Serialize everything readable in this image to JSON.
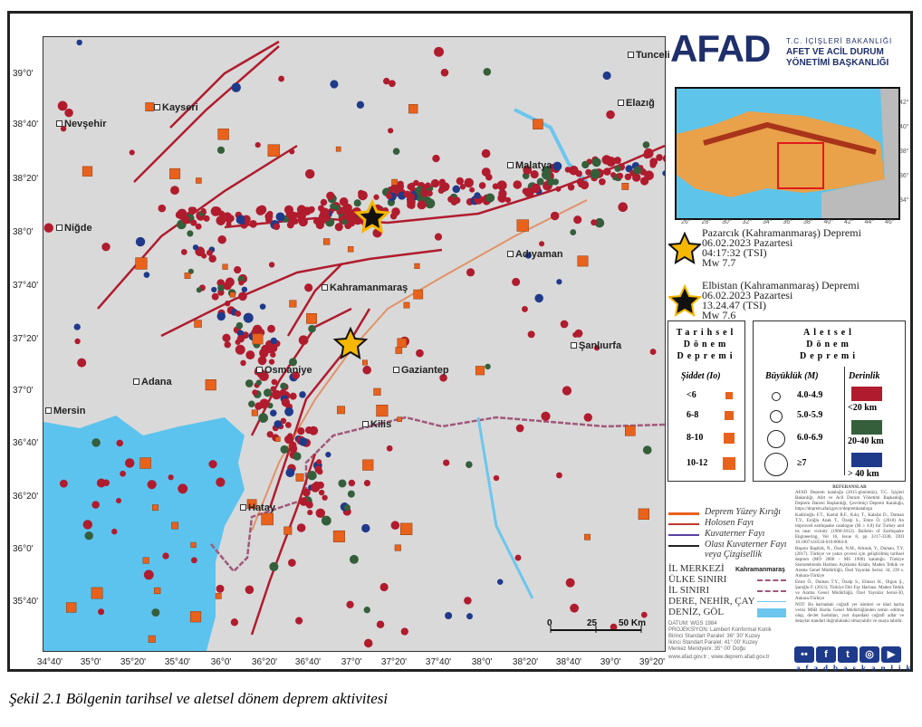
{
  "header": {
    "logo": "AFAD",
    "ministry_line1": "T.C. İÇİŞLERİ BAKANLIĞI",
    "ministry_line2": "AFET VE ACİL DURUM",
    "ministry_line3": "YÖNETİMİ BAŞKANLIĞI"
  },
  "inset": {
    "lon_ticks": [
      "26°",
      "28°",
      "30°",
      "32°",
      "34°",
      "36°",
      "38°",
      "40°",
      "42°",
      "44°",
      "46°"
    ],
    "lat_ticks": [
      "42°",
      "40°",
      "38°",
      "36°",
      "34°"
    ]
  },
  "map": {
    "lat_ticks": [
      "39°0'",
      "38°40'",
      "38°20'",
      "38°0'",
      "37°40'",
      "37°20'",
      "37°0'",
      "36°40'",
      "36°20'",
      "36°0'",
      "35°40'"
    ],
    "lon_ticks": [
      "34°40'",
      "35°0'",
      "35°20'",
      "35°40'",
      "36°0'",
      "36°20'",
      "36°40'",
      "37°0'",
      "37°20'",
      "37°40'",
      "38°0'",
      "38°20'",
      "38°40'",
      "39°0'",
      "39°20'"
    ],
    "cities": [
      "Tunceli",
      "Elazığ",
      "Kayseri",
      "Nevşehir",
      "Malatya",
      "Niğde",
      "Adıyaman",
      "Kahramanmaraş",
      "Şanlıurfa",
      "Osmaniye",
      "Gaziantep",
      "Adana",
      "Mersin",
      "Kilis",
      "Hatay"
    ],
    "scale": {
      "labels": [
        "0",
        "25",
        "50 Km"
      ]
    }
  },
  "mainshocks": [
    {
      "name": "Pazarcık (Kahramanmaraş) Depremi",
      "date": "06.02.2023 Pazartesi",
      "time": "04:17:32 (TSI)",
      "mag": "Mw 7.7"
    },
    {
      "name": "Elbistan (Kahramanmaraş) Depremi",
      "date": "06.02.2023 Pazartesi",
      "time": "13.24.47 (TSI)",
      "mag": "Mw 7.6"
    }
  ],
  "legend": {
    "historical": {
      "title": [
        "Tarihsel",
        "Dönem",
        "Depremi"
      ],
      "subtitle": "Şiddet (Io)",
      "classes": [
        "<6",
        "6-8",
        "8-10",
        "10-12"
      ]
    },
    "instrumental": {
      "title": [
        "Aletsel",
        "Dönem",
        "Depremi"
      ],
      "mag_title": "Büyüklük (M)",
      "mag_classes": [
        "4.0-4.9",
        "5.0-5.9",
        "6.0-6.9",
        "≥7"
      ],
      "depth_title": "Derinlik",
      "depth_classes": [
        "<20 km",
        "20-40 km",
        "> 40 km"
      ]
    },
    "depth_colors": [
      "#b01c2e",
      "#355e3b",
      "#1f3a8a"
    ],
    "historical_color": "#e8621c",
    "lines": [
      "Deprem Yüzey Kırığı",
      "Holosen Fayı",
      "Kuvaterner Fayı",
      "Olası Kuvaterner Fayı veya Çizgisellik"
    ],
    "symbols": [
      "İL MERKEZİ",
      "ÜLKE SINIRI",
      "İL SINIRI",
      "DERE, NEHİR, ÇAY",
      "DENİZ, GÖL"
    ],
    "city_example": "Kahramanmaraş",
    "projection": [
      "DATUM: WGS 1984",
      "PROJEKSİYON: Lambert Konformal Konik",
      "Birinci Standart Paralel: 36° 30' Kuzey",
      "İkinci Standart Paralel: 41° 00' Kuzey",
      "Merkez Meridyeni: 35° 00' Doğu"
    ],
    "web": "www.afad.gov.tr ; www.deprem.afad.gov.tr"
  },
  "references": {
    "title": "REFERANSLAR",
    "items": [
      "AFAD Deprem kataloğu (2015-günümüz), T.C. İçişleri Bakanlığı, Afet ve Acil Durum Yönetimi Başkanlığı, Deprem Dairesi Başkanlığı, Çevrimiçi Deprem Kataloğu, https://deprem.afad.gov.tr/depremkatalogu",
      "Kadirioğlu F.T., Kartal R.F., Kılıç T., Kalafat D., Duman T.Y., Eroğlu Azak T., Özalp S., Emre Ö. (2018) An improved earthquake catalogue (M ≥ 4.0) for Turkey and its near vicinity (1900-2012). Bulletin of Earthquake Engineering, Vol 16, Issue 8, pp 3317-3338, DOI 10.1007/s10518-016-0064-8.",
      "Başarır Baştürk, N., Özel, N.M., Altınok, Y., Duman, T.Y. (2017). Türkiye ve yakın çevresi için geliştirilmiş tarihsel deprem (MÖ 2000 - MS 1900) kataloğu. Türkiye Sismotektonik Haritası Açıklama Kitabı, Maden Tetkik ve Arama Genel Müdürlüğü, Özel Yayınlar Serisi: 34, 239 s. Ankara-Türkiye",
      "Emre Ö., Duman T.Y., Özalp S., Elmacı H., Olgun Ş., Şaroğlu F. (2013). Türkiye Diri Fay Haritası. Maden Tetkik ve Arama Genel Müdürlüğü, Özel Yayınlar Serisi-30, Ankara-Türkiye",
      "NOT: Bu haritadaki coğrafi yer isimleri ve idari harita verisi MSB Harita Genel Müdürlüğünden temin edilmiş olup, devlet hudutları, yurt dışındaki coğrafi adlar ve detaylar standart doğruluktaki olmayabilir ve onaya tabidir."
    ]
  },
  "social": {
    "handle": "afadbaskanlik",
    "icons": [
      "flickr-icon",
      "facebook-icon",
      "twitter-icon",
      "instagram-icon",
      "youtube-icon"
    ]
  },
  "caption": "Şekil 2.1 Bölgenin tarihsel ve aletsel dönem deprem aktivitesi"
}
